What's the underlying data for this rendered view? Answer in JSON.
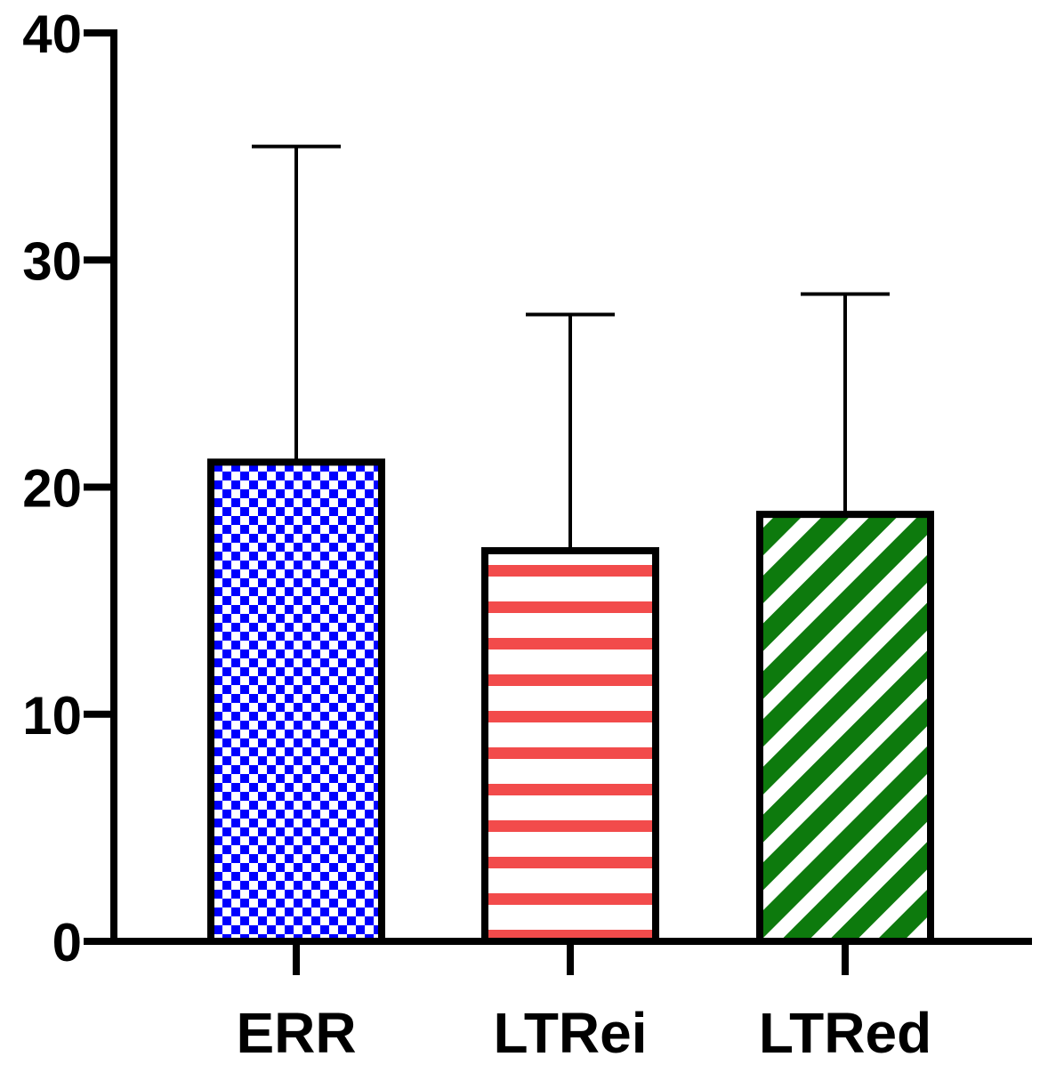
{
  "chart_data": {
    "type": "bar",
    "title": "",
    "xlabel": "",
    "ylabel": "",
    "categories": [
      "ERR",
      "LTRei",
      "LTRed"
    ],
    "values": [
      21.1,
      17.2,
      18.8
    ],
    "error_upper": [
      35.0,
      27.6,
      28.5
    ],
    "ylim": [
      0,
      40
    ],
    "yticks": [
      {
        "value": 0,
        "label": "0"
      },
      {
        "value": 10,
        "label": "10"
      },
      {
        "value": 20,
        "label": "20"
      },
      {
        "value": 30,
        "label": "30"
      },
      {
        "value": 40,
        "label": "40"
      }
    ],
    "fills": [
      {
        "pattern": "checkerboard",
        "color": "#0000ff"
      },
      {
        "pattern": "horizontal-stripes",
        "color": "#f24b4b"
      },
      {
        "pattern": "diagonal-stripes",
        "color": "#0d7a0d"
      }
    ],
    "grid": false,
    "legend": "none"
  }
}
